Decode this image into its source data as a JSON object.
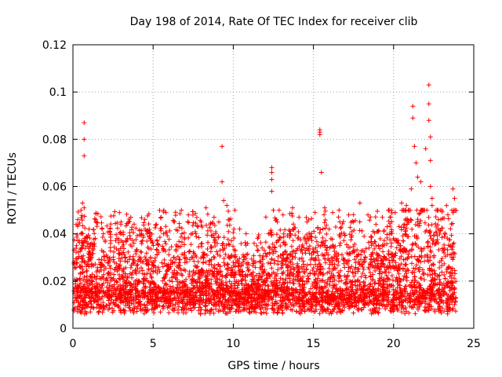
{
  "chart_data": {
    "type": "scatter",
    "title": "Day 198 of 2014, Rate Of TEC Index for receiver clib",
    "xlabel": "GPS time / hours",
    "ylabel": "ROTI / TECUs",
    "xlim": [
      0,
      25
    ],
    "ylim": [
      0,
      0.12
    ],
    "xticks": [
      0,
      5,
      10,
      15,
      20,
      25
    ],
    "xtick_labels": [
      "0",
      "5",
      "10",
      "15",
      "20",
      "25"
    ],
    "yticks": [
      0,
      0.02,
      0.04,
      0.06,
      0.08,
      0.1,
      0.12
    ],
    "ytick_labels": [
      "0",
      "0.02",
      "0.04",
      "0.06",
      "0.08",
      "0.1",
      "0.12"
    ],
    "grid": true,
    "marker": "+",
    "color": "#ff0000",
    "series": [
      {
        "name": "ROTI",
        "points": [
          [
            0.7,
            0.087
          ],
          [
            0.7,
            0.08
          ],
          [
            0.7,
            0.073
          ],
          [
            0.6,
            0.053
          ],
          [
            0.7,
            0.051
          ],
          [
            0.3,
            0.046
          ],
          [
            0.5,
            0.04
          ],
          [
            0.2,
            0.044
          ],
          [
            1.0,
            0.042
          ],
          [
            1.4,
            0.038
          ],
          [
            1.9,
            0.04
          ],
          [
            2.3,
            0.041
          ],
          [
            2.9,
            0.049
          ],
          [
            3.0,
            0.045
          ],
          [
            3.3,
            0.037
          ],
          [
            3.8,
            0.036
          ],
          [
            4.5,
            0.042
          ],
          [
            5.2,
            0.044
          ],
          [
            5.5,
            0.047
          ],
          [
            5.8,
            0.049
          ],
          [
            6.3,
            0.045
          ],
          [
            6.8,
            0.04
          ],
          [
            7.2,
            0.048
          ],
          [
            7.8,
            0.043
          ],
          [
            8.3,
            0.051
          ],
          [
            8.8,
            0.047
          ],
          [
            9.1,
            0.045
          ],
          [
            9.3,
            0.077
          ],
          [
            9.3,
            0.062
          ],
          [
            9.4,
            0.054
          ],
          [
            9.6,
            0.052
          ],
          [
            10.1,
            0.05
          ],
          [
            10.4,
            0.042
          ],
          [
            10.8,
            0.04
          ],
          [
            11.3,
            0.036
          ],
          [
            11.8,
            0.034
          ],
          [
            12.2,
            0.04
          ],
          [
            12.4,
            0.068
          ],
          [
            12.4,
            0.066
          ],
          [
            12.4,
            0.063
          ],
          [
            12.4,
            0.058
          ],
          [
            12.5,
            0.05
          ],
          [
            12.7,
            0.046
          ],
          [
            13.1,
            0.048
          ],
          [
            13.7,
            0.051
          ],
          [
            14.1,
            0.047
          ],
          [
            14.6,
            0.045
          ],
          [
            15.1,
            0.049
          ],
          [
            15.4,
            0.084
          ],
          [
            15.4,
            0.083
          ],
          [
            15.4,
            0.082
          ],
          [
            15.5,
            0.066
          ],
          [
            15.7,
            0.051
          ],
          [
            16.2,
            0.049
          ],
          [
            16.6,
            0.05
          ],
          [
            17.2,
            0.048
          ],
          [
            17.5,
            0.045
          ],
          [
            17.9,
            0.053
          ],
          [
            18.4,
            0.048
          ],
          [
            18.9,
            0.044
          ],
          [
            19.3,
            0.047
          ],
          [
            19.6,
            0.043
          ],
          [
            20.1,
            0.049
          ],
          [
            20.5,
            0.053
          ],
          [
            20.8,
            0.052
          ],
          [
            21.1,
            0.059
          ],
          [
            21.2,
            0.094
          ],
          [
            21.2,
            0.089
          ],
          [
            21.3,
            0.077
          ],
          [
            21.4,
            0.07
          ],
          [
            21.5,
            0.064
          ],
          [
            21.7,
            0.062
          ],
          [
            22.0,
            0.076
          ],
          [
            22.2,
            0.103
          ],
          [
            22.2,
            0.095
          ],
          [
            22.2,
            0.088
          ],
          [
            22.3,
            0.081
          ],
          [
            22.3,
            0.071
          ],
          [
            22.3,
            0.06
          ],
          [
            22.4,
            0.055
          ],
          [
            22.4,
            0.052
          ],
          [
            22.8,
            0.046
          ],
          [
            23.3,
            0.052
          ],
          [
            23.7,
            0.059
          ],
          [
            23.8,
            0.055
          ]
        ]
      }
    ]
  }
}
